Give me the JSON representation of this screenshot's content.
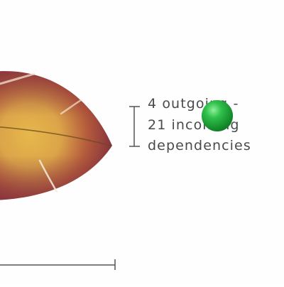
{
  "colors": {
    "background": "#fefefe",
    "leaf_edge": "#7a2a3e",
    "leaf_mid": "#b85a3c",
    "leaf_center": "#e0ad47",
    "vein": "#6a4a1c",
    "axis": "#555555",
    "annotation_text": "#4a4a4a",
    "cursor_dot": "#22b03a"
  },
  "annotation": {
    "lines": [
      "4 outgoing -",
      "21 incoming",
      "dependencies"
    ]
  },
  "icons": {
    "cursor_dot": "green-sphere-icon",
    "leaf": "leaf-icon"
  }
}
